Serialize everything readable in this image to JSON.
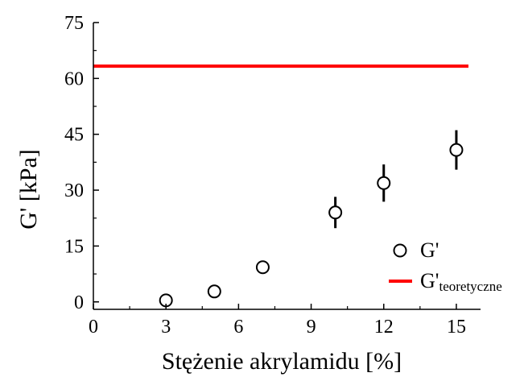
{
  "chart_data": {
    "type": "scatter",
    "xlabel": "Stężenie akrylamidu [%]",
    "ylabel": "G' [kPa]",
    "xlim": [
      0,
      16
    ],
    "ylim": [
      -2,
      75
    ],
    "x_ticks": [
      0,
      3,
      6,
      9,
      12,
      15
    ],
    "y_ticks": [
      0,
      15,
      30,
      45,
      60,
      75
    ],
    "x_tick_labels": [
      "0",
      "3",
      "6",
      "9",
      "12",
      "15"
    ],
    "y_tick_labels": [
      "0",
      "15",
      "30",
      "45",
      "60",
      "75"
    ],
    "grid": false,
    "legend_position": "bottom-right",
    "series": [
      {
        "name": "G'",
        "kind": "scatter",
        "marker": "open-circle",
        "color": "#000000",
        "x": [
          3,
          5,
          7,
          10,
          12,
          15
        ],
        "y": [
          0.4,
          2.8,
          9.3,
          24.0,
          31.9,
          40.8
        ],
        "error": [
          1.3,
          1.5,
          1.5,
          4.2,
          5.0,
          5.3
        ]
      },
      {
        "name": "G'",
        "name_subscript": "teoretyczne",
        "kind": "line",
        "color": "#ff0000",
        "x": [
          0,
          15.5
        ],
        "y": [
          63.3,
          63.3
        ]
      }
    ]
  }
}
